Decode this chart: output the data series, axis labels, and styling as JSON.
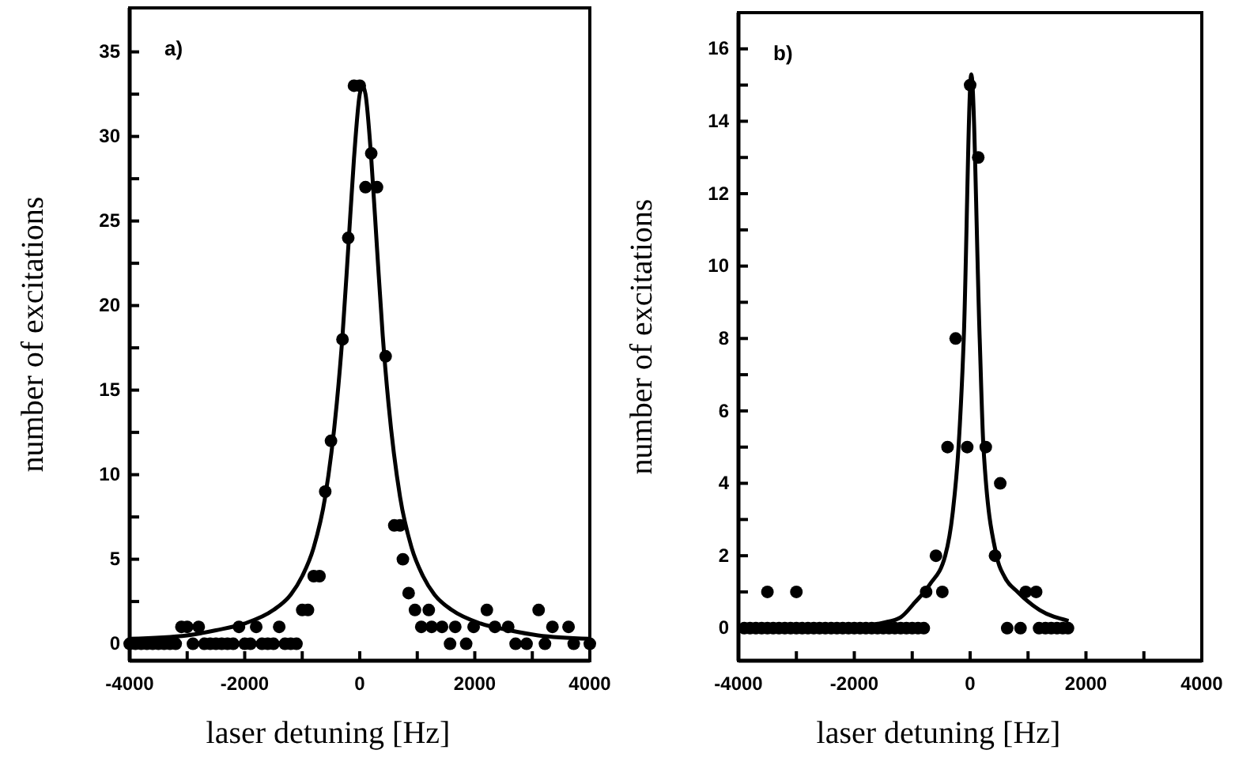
{
  "chart_data": [
    {
      "type": "scatter",
      "xlabel": "laser detuning [Hz]",
      "ylabel": "number of excitations",
      "annotations": [
        "a)"
      ],
      "xlim": [
        -4000,
        4000
      ],
      "ylim": [
        -1,
        37.6
      ],
      "xticks": [
        -4000,
        {
          "value": -3000,
          "label": null
        },
        -2000,
        {
          "value": -1000,
          "label": null
        },
        0,
        {
          "value": 1000,
          "label": null
        },
        2000,
        {
          "value": 3000,
          "label": null
        },
        4000
      ],
      "yticks": [
        0,
        {
          "value": 2.5,
          "label": null
        },
        5,
        {
          "value": 7.5,
          "label": null
        },
        10,
        {
          "value": 12.5,
          "label": null
        },
        15,
        {
          "value": 17.5,
          "label": null
        },
        20,
        {
          "value": 22.5,
          "label": null
        },
        25,
        {
          "value": 27.5,
          "label": null
        },
        30,
        {
          "value": 32.5,
          "label": null
        },
        35
      ],
      "series": [
        {
          "marker": "circle",
          "color": "#000000",
          "x": [
            -4000,
            -3900,
            -3800,
            -3700,
            -3600,
            -3500,
            -3400,
            -3300,
            -3200,
            -3100,
            -3000,
            -2900,
            -2800,
            -2700,
            -2600,
            -2500,
            -2400,
            -2300,
            -2200,
            -2100,
            -2000,
            -1900,
            -1800,
            -1700,
            -1600,
            -1500,
            -1400,
            -1300,
            -1200,
            -1100,
            -1000,
            -900,
            -800,
            -700,
            -600,
            -500,
            -300,
            -200,
            -100,
            0,
            100,
            200,
            300,
            450,
            600,
            700,
            750,
            850,
            960,
            1070,
            1200,
            1250,
            1430,
            1570,
            1660,
            1850,
            1980,
            2210,
            2350,
            2580,
            2710,
            2900,
            3110,
            3220,
            3350,
            3630,
            3720,
            4000
          ],
          "values": [
            0,
            0,
            0,
            0,
            0,
            0,
            0,
            0,
            0,
            1,
            1,
            0,
            1,
            0,
            0,
            0,
            0,
            0,
            0,
            1,
            0,
            0,
            1,
            0,
            0,
            0,
            1,
            0,
            0,
            0,
            2,
            2,
            4,
            4,
            9,
            12,
            18,
            24,
            33,
            33,
            27,
            29,
            27,
            17,
            7,
            7,
            5,
            3,
            2,
            1,
            2,
            1,
            1,
            0,
            1,
            0,
            1,
            2,
            1,
            1,
            0,
            0,
            2,
            0,
            1,
            1,
            0,
            0
          ]
        },
        {
          "type": "line",
          "color": "#000000",
          "x": [
            -4000,
            -3000,
            -2500,
            -2000,
            -1500,
            -1200,
            -1000,
            -800,
            -600,
            -400,
            -300,
            -200,
            -100,
            0,
            50,
            100,
            200,
            300,
            400,
            500,
            700,
            900,
            1100,
            1300,
            1600,
            2100,
            2600,
            3100,
            4000
          ],
          "values": [
            0.3,
            0.5,
            0.8,
            1.2,
            2.0,
            2.9,
            4.0,
            5.7,
            8.7,
            14.2,
            18.2,
            23.4,
            28.7,
            32.5,
            33,
            32.5,
            28.7,
            23.4,
            18.2,
            14.2,
            8.7,
            5.7,
            4.0,
            2.9,
            2.0,
            1.2,
            0.8,
            0.5,
            0.3
          ]
        }
      ]
    },
    {
      "type": "scatter",
      "xlabel": "laser detuning [Hz]",
      "ylabel": "number of excitations",
      "annotations": [
        "b)"
      ],
      "xlim": [
        -4000,
        4000
      ],
      "ylim": [
        -0.9,
        17
      ],
      "xticks": [
        -4000,
        {
          "value": -3000,
          "label": null
        },
        -2000,
        {
          "value": -1000,
          "label": null
        },
        0,
        {
          "value": 1000,
          "label": null
        },
        2000,
        {
          "value": 3000,
          "label": null
        },
        4000
      ],
      "yticks": [
        0,
        {
          "value": 1,
          "label": null
        },
        2,
        {
          "value": 3,
          "label": null
        },
        4,
        {
          "value": 5,
          "label": null
        },
        6,
        {
          "value": 7,
          "label": null
        },
        8,
        {
          "value": 9,
          "label": null
        },
        10,
        {
          "value": 11,
          "label": null
        },
        12,
        {
          "value": 13,
          "label": null
        },
        14,
        {
          "value": 15,
          "label": null
        },
        16
      ],
      "series": [
        {
          "marker": "circle",
          "color": "#000000",
          "x": [
            -3900,
            -3800,
            -3700,
            -3600,
            -3500,
            -3400,
            -3300,
            -3200,
            -3100,
            -3000,
            -2900,
            -2800,
            -2700,
            -2600,
            -2500,
            -2400,
            -2300,
            -2200,
            -2100,
            -2000,
            -1900,
            -1800,
            -1700,
            -1600,
            -1500,
            -1400,
            -1300,
            -1200,
            -1100,
            -1000,
            -900,
            -800,
            -3500,
            -3000,
            -760,
            -590,
            -480,
            -390,
            -250,
            -50,
            0,
            140,
            270,
            430,
            520,
            640,
            870,
            960,
            1140,
            1190,
            1300,
            1400,
            1500,
            1600,
            1690
          ],
          "values": [
            0,
            0,
            0,
            0,
            0,
            0,
            0,
            0,
            0,
            0,
            0,
            0,
            0,
            0,
            0,
            0,
            0,
            0,
            0,
            0,
            0,
            0,
            0,
            0,
            0,
            0,
            0,
            0,
            0,
            0,
            0,
            0,
            1,
            1,
            1,
            2,
            1,
            5,
            8,
            5,
            15,
            13,
            5,
            2,
            4,
            0,
            0,
            1,
            1,
            0,
            0,
            0,
            0,
            0,
            0
          ]
        },
        {
          "type": "line",
          "color": "#000000",
          "x": [
            -4000,
            -3000,
            -2000,
            -1500,
            -1200,
            -960,
            -700,
            -430,
            -300,
            -200,
            -110,
            20,
            165,
            230,
            456,
            600,
            820,
            1200,
            1700
          ],
          "values": [
            0,
            0.02,
            0.05,
            0.15,
            0.3,
            0.7,
            1.2,
            2,
            3.2,
            5,
            8,
            15.3,
            8,
            5,
            2,
            1.4,
            1,
            0.5,
            0.2
          ]
        }
      ]
    }
  ]
}
